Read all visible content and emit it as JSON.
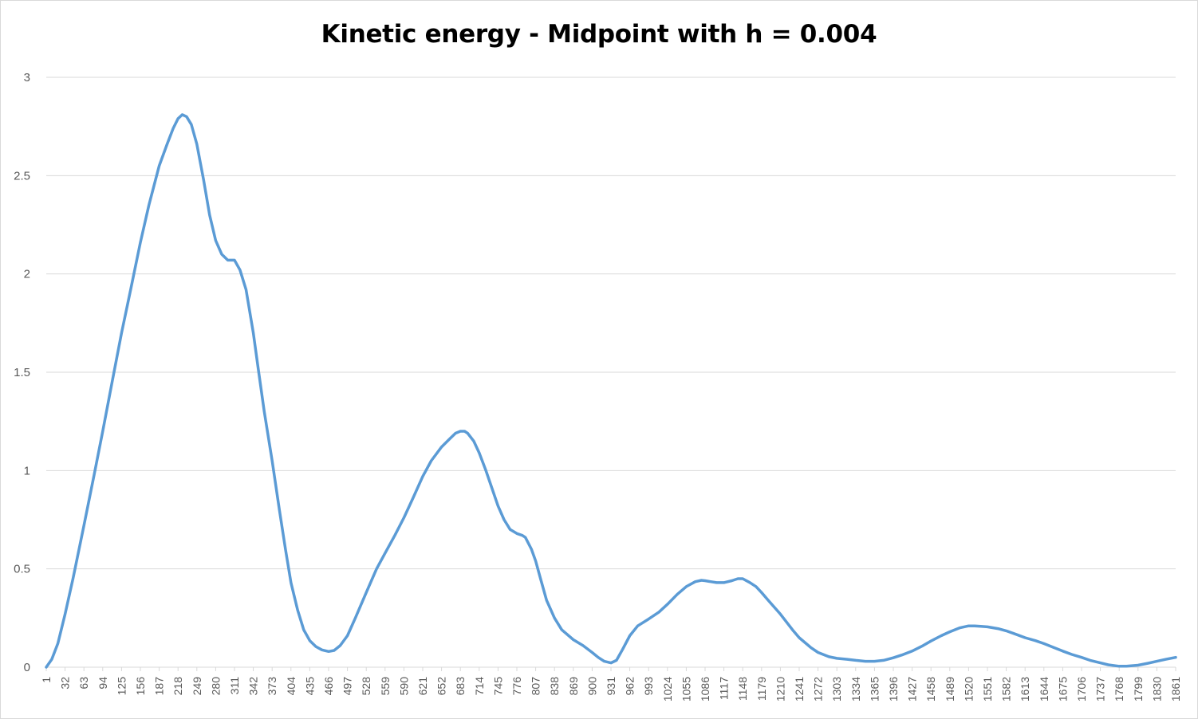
{
  "chart_data": {
    "type": "line",
    "title": "Kinetic energy - Midpoint with h = 0.004",
    "xlabel": "",
    "ylabel": "",
    "ylim": [
      0,
      3
    ],
    "y_ticks": [
      "0",
      "0.5",
      "1",
      "1.5",
      "2",
      "2.5",
      "3"
    ],
    "x_ticks": [
      "1",
      "32",
      "63",
      "94",
      "125",
      "156",
      "187",
      "218",
      "249",
      "280",
      "311",
      "342",
      "373",
      "404",
      "435",
      "466",
      "497",
      "528",
      "559",
      "590",
      "621",
      "652",
      "683",
      "714",
      "745",
      "776",
      "807",
      "838",
      "869",
      "900",
      "931",
      "962",
      "993",
      "1024",
      "1055",
      "1086",
      "1117",
      "1148",
      "1179",
      "1210",
      "1241",
      "1272",
      "1303",
      "1334",
      "1365",
      "1396",
      "1427",
      "1458",
      "1489",
      "1520",
      "1551",
      "1582",
      "1613",
      "1644",
      "1675",
      "1706",
      "1737",
      "1768",
      "1799",
      "1830",
      "1861"
    ],
    "x_range": [
      1,
      1861
    ],
    "grid": true,
    "legend": "none",
    "line_color": "#5b9bd5",
    "series": [
      {
        "x": [
          1,
          10,
          20,
          32,
          45,
          63,
          80,
          94,
          110,
          125,
          140,
          156,
          170,
          187,
          200,
          210,
          218,
          225,
          232,
          240,
          249,
          260,
          270,
          280,
          290,
          300,
          311,
          320,
          330,
          342,
          350,
          360,
          373,
          385,
          395,
          404,
          415,
          425,
          435,
          445,
          455,
          466,
          475,
          485,
          497,
          510,
          528,
          545,
          559,
          575,
          590,
          605,
          621,
          635,
          652,
          665,
          675,
          683,
          690,
          695,
          705,
          714,
          725,
          735,
          745,
          755,
          765,
          776,
          785,
          790,
          800,
          807,
          815,
          825,
          838,
          850,
          869,
          885,
          900,
          910,
          920,
          931,
          940,
          950,
          962,
          975,
          993,
          1010,
          1024,
          1040,
          1055,
          1070,
          1080,
          1086,
          1095,
          1105,
          1117,
          1130,
          1140,
          1148,
          1160,
          1170,
          1179,
          1190,
          1210,
          1230,
          1241,
          1260,
          1272,
          1290,
          1303,
          1320,
          1334,
          1350,
          1365,
          1380,
          1396,
          1410,
          1427,
          1445,
          1458,
          1475,
          1489,
          1505,
          1520,
          1530,
          1540,
          1551,
          1570,
          1582,
          1600,
          1613,
          1630,
          1644,
          1660,
          1675,
          1690,
          1706,
          1720,
          1737,
          1750,
          1768,
          1780,
          1799,
          1815,
          1830,
          1845,
          1861
        ],
        "y": [
          0,
          0.04,
          0.12,
          0.27,
          0.45,
          0.72,
          0.98,
          1.2,
          1.46,
          1.7,
          1.92,
          2.16,
          2.35,
          2.55,
          2.66,
          2.74,
          2.79,
          2.81,
          2.8,
          2.76,
          2.66,
          2.48,
          2.3,
          2.17,
          2.1,
          2.07,
          2.07,
          2.02,
          1.92,
          1.7,
          1.52,
          1.3,
          1.05,
          0.8,
          0.6,
          0.43,
          0.29,
          0.19,
          0.135,
          0.105,
          0.088,
          0.08,
          0.085,
          0.11,
          0.16,
          0.25,
          0.38,
          0.5,
          0.58,
          0.67,
          0.76,
          0.86,
          0.97,
          1.05,
          1.12,
          1.16,
          1.19,
          1.2,
          1.2,
          1.19,
          1.15,
          1.09,
          1.0,
          0.91,
          0.82,
          0.75,
          0.7,
          0.68,
          0.67,
          0.66,
          0.6,
          0.54,
          0.45,
          0.34,
          0.25,
          0.19,
          0.14,
          0.11,
          0.075,
          0.05,
          0.03,
          0.022,
          0.035,
          0.09,
          0.16,
          0.21,
          0.245,
          0.28,
          0.32,
          0.37,
          0.41,
          0.435,
          0.442,
          0.44,
          0.435,
          0.43,
          0.43,
          0.44,
          0.45,
          0.45,
          0.43,
          0.41,
          0.38,
          0.34,
          0.27,
          0.19,
          0.15,
          0.1,
          0.075,
          0.053,
          0.045,
          0.04,
          0.035,
          0.03,
          0.03,
          0.035,
          0.048,
          0.062,
          0.082,
          0.11,
          0.133,
          0.16,
          0.18,
          0.2,
          0.21,
          0.21,
          0.208,
          0.205,
          0.195,
          0.185,
          0.165,
          0.15,
          0.135,
          0.12,
          0.1,
          0.082,
          0.065,
          0.05,
          0.035,
          0.022,
          0.012,
          0.005,
          0.005,
          0.01,
          0.02,
          0.03,
          0.04,
          0.05
        ]
      }
    ]
  }
}
